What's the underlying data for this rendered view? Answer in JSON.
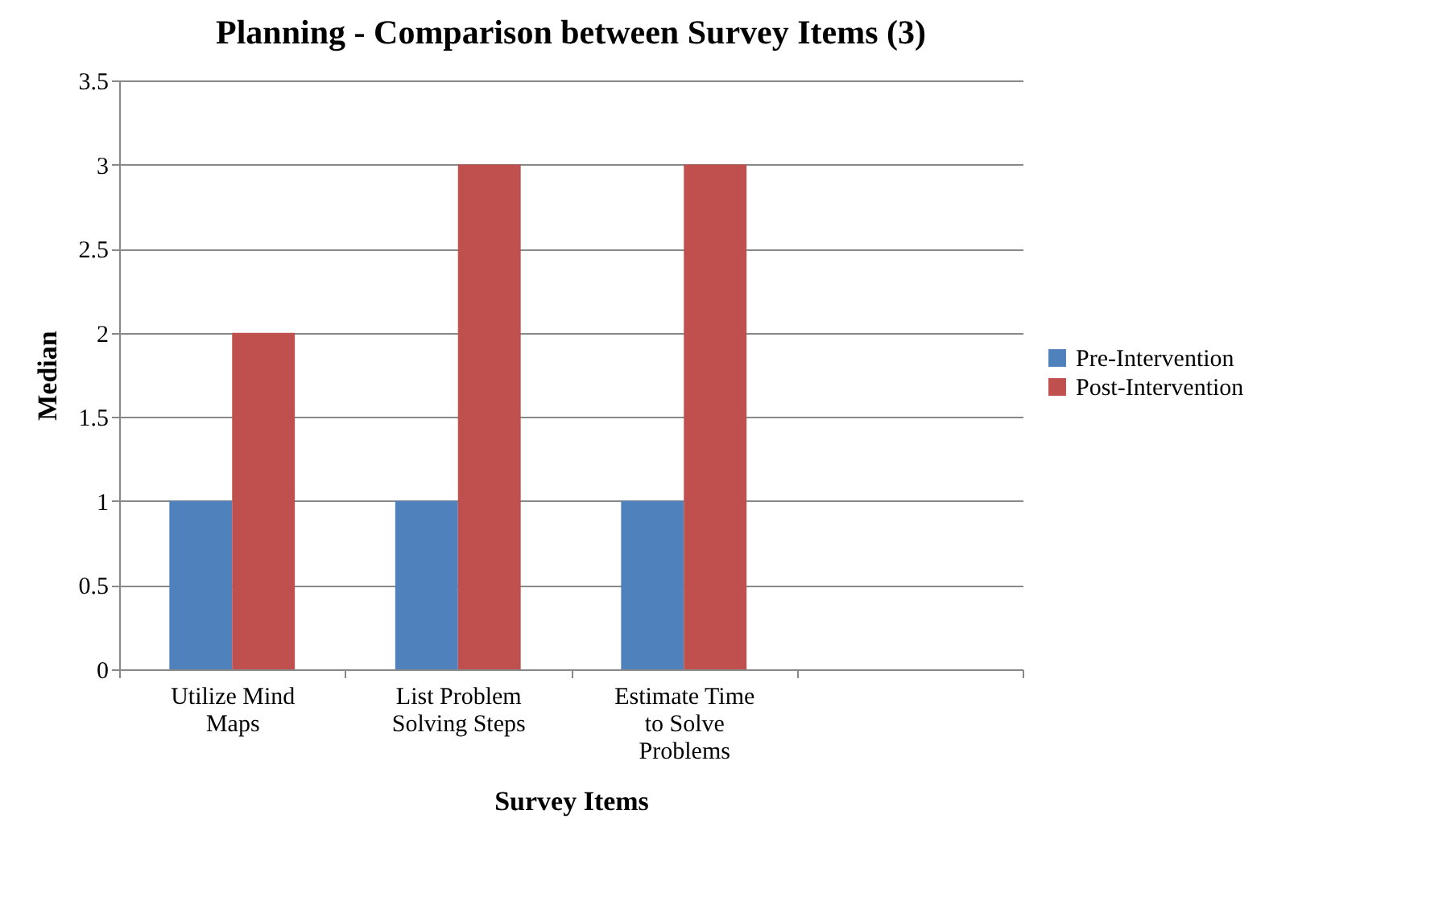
{
  "chart_data": {
    "type": "bar",
    "title": "Planning - Comparison between Survey Items (3)",
    "xlabel": "Survey Items",
    "ylabel": "Median",
    "categories": [
      "Utilize Mind Maps",
      "List Problem Solving Steps",
      "Estimate Time to Solve Problems",
      null
    ],
    "series": [
      {
        "name": "Pre-Intervention",
        "color": "#4f81bd",
        "values": [
          1,
          1,
          1,
          null
        ]
      },
      {
        "name": "Post-Intervention",
        "color": "#c0504d",
        "values": [
          2,
          3,
          3,
          null
        ]
      }
    ],
    "ylim": [
      0,
      3.5
    ],
    "yticks": [
      0,
      0.5,
      1,
      1.5,
      2,
      2.5,
      3,
      3.5
    ],
    "grid": "y",
    "legend": "right"
  }
}
